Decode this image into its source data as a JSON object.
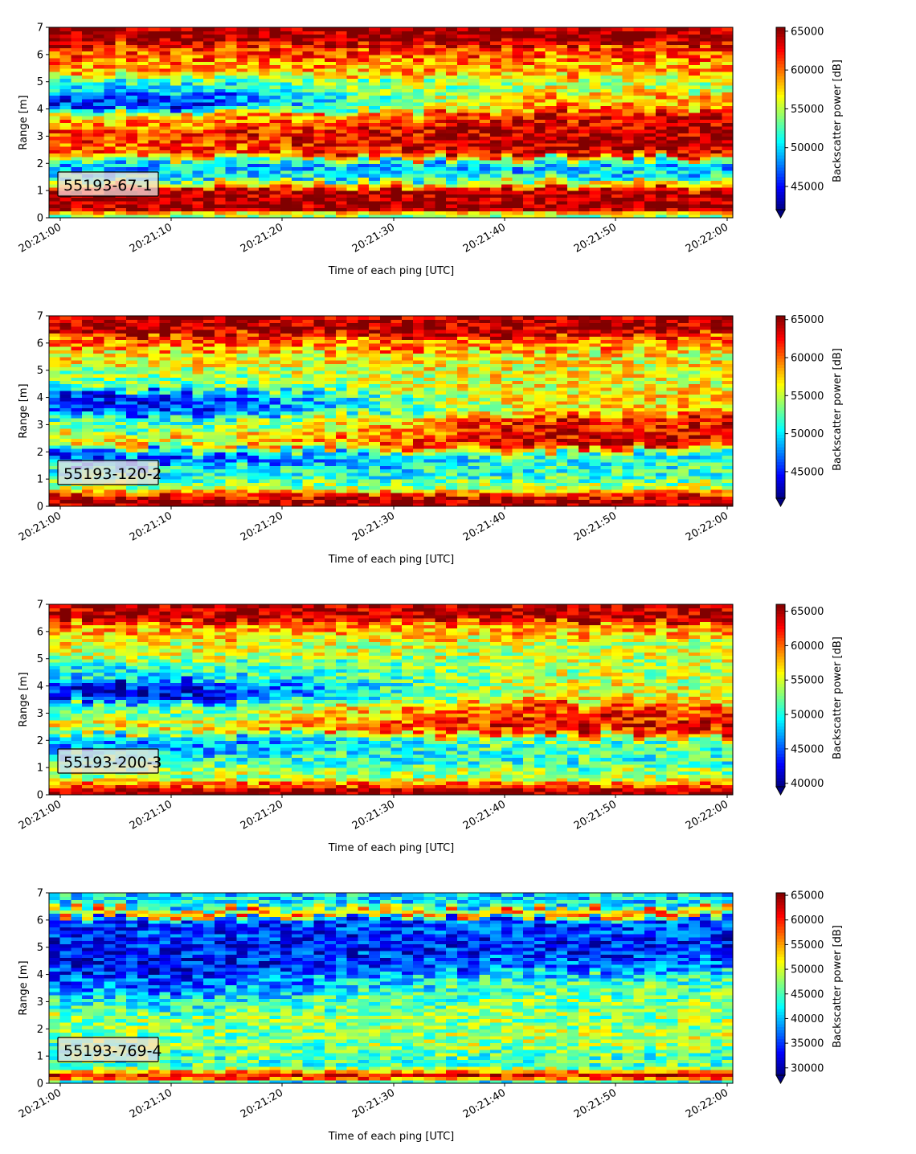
{
  "chart_data": [
    {
      "type": "heatmap",
      "label": "55193-67-1",
      "xlabel": "Time of each ping [UTC]",
      "ylabel": "Range [m]",
      "xticks": [
        "20:21:00",
        "20:21:10",
        "20:21:20",
        "20:21:30",
        "20:21:40",
        "20:21:50",
        "20:22:00"
      ],
      "yticks": [
        "0",
        "1",
        "2",
        "3",
        "4",
        "5",
        "6",
        "7"
      ],
      "ylim": [
        0,
        7
      ],
      "colorbar": {
        "label": "Backscatter power [dB]",
        "ticks": [
          "45000",
          "50000",
          "55000",
          "60000",
          "65000"
        ],
        "range": [
          42000,
          65500
        ]
      },
      "seed": 11,
      "bands": [
        {
          "y": 0.12,
          "v": 0.3,
          "w": 0.1
        },
        {
          "y": 0.35,
          "v": 0.97,
          "w": 0.3
        },
        {
          "y": 0.8,
          "v": 0.97,
          "w": 0.25
        },
        {
          "y": 1.25,
          "v": 0.65,
          "w": 0.12
        },
        {
          "y": 1.55,
          "v": 0.38,
          "w": 0.2
        },
        {
          "y": 1.95,
          "v": 0.28,
          "w": 0.25
        },
        {
          "y": 2.5,
          "v": 0.78,
          "w": 0.35,
          "late": 0.95
        },
        {
          "y": 3.0,
          "v": 0.85,
          "w": 0.3,
          "late": 0.95
        },
        {
          "y": 3.6,
          "v": 0.72,
          "w": 0.3,
          "late": 0.9
        },
        {
          "y": 4.3,
          "v": 0.15,
          "w": 0.35,
          "late": 0.7
        },
        {
          "y": 4.9,
          "v": 0.4,
          "w": 0.3,
          "late": 0.55
        },
        {
          "y": 5.5,
          "v": 0.72,
          "w": 0.3
        },
        {
          "y": 6.1,
          "v": 0.8,
          "w": 0.25
        },
        {
          "y": 6.7,
          "v": 0.98,
          "w": 0.3
        }
      ]
    },
    {
      "type": "heatmap",
      "label": "55193-120-2",
      "xlabel": "Time of each ping [UTC]",
      "ylabel": "Range [m]",
      "xticks": [
        "20:21:00",
        "20:21:10",
        "20:21:20",
        "20:21:30",
        "20:21:40",
        "20:21:50",
        "20:22:00"
      ],
      "yticks": [
        "0",
        "1",
        "2",
        "3",
        "4",
        "5",
        "6",
        "7"
      ],
      "ylim": [
        0,
        7
      ],
      "colorbar": {
        "label": "Backscatter power [dB]",
        "ticks": [
          "45000",
          "50000",
          "55000",
          "60000",
          "65000"
        ],
        "range": [
          41500,
          65500
        ]
      },
      "seed": 23,
      "bands": [
        {
          "y": 0.15,
          "v": 0.97,
          "w": 0.15
        },
        {
          "y": 0.45,
          "v": 0.85,
          "w": 0.12
        },
        {
          "y": 0.75,
          "v": 0.55,
          "w": 0.2
        },
        {
          "y": 1.2,
          "v": 0.42,
          "w": 0.3
        },
        {
          "y": 1.8,
          "v": 0.2,
          "w": 0.3,
          "late": 0.4
        },
        {
          "y": 2.4,
          "v": 0.65,
          "w": 0.3,
          "late": 0.9
        },
        {
          "y": 3.0,
          "v": 0.45,
          "w": 0.3,
          "late": 0.88
        },
        {
          "y": 3.8,
          "v": 0.15,
          "w": 0.35,
          "late": 0.65
        },
        {
          "y": 4.6,
          "v": 0.5,
          "w": 0.3,
          "late": 0.62
        },
        {
          "y": 5.4,
          "v": 0.62,
          "w": 0.3
        },
        {
          "y": 6.0,
          "v": 0.75,
          "w": 0.25
        },
        {
          "y": 6.6,
          "v": 0.96,
          "w": 0.3
        }
      ]
    },
    {
      "type": "heatmap",
      "label": "55193-200-3",
      "xlabel": "Time of each ping [UTC]",
      "ylabel": "Range [m]",
      "xticks": [
        "20:21:00",
        "20:21:10",
        "20:21:20",
        "20:21:30",
        "20:21:40",
        "20:21:50",
        "20:22:00"
      ],
      "yticks": [
        "0",
        "1",
        "2",
        "3",
        "4",
        "5",
        "6",
        "7"
      ],
      "ylim": [
        0,
        7
      ],
      "colorbar": {
        "label": "Backscatter power [dB]",
        "ticks": [
          "40000",
          "45000",
          "50000",
          "55000",
          "60000",
          "65000"
        ],
        "range": [
          39500,
          66000
        ]
      },
      "seed": 37,
      "bands": [
        {
          "y": 0.12,
          "v": 0.97,
          "w": 0.12
        },
        {
          "y": 0.4,
          "v": 0.8,
          "w": 0.12
        },
        {
          "y": 0.75,
          "v": 0.55,
          "w": 0.25
        },
        {
          "y": 1.3,
          "v": 0.42,
          "w": 0.3
        },
        {
          "y": 1.9,
          "v": 0.25,
          "w": 0.3,
          "late": 0.45
        },
        {
          "y": 2.5,
          "v": 0.62,
          "w": 0.3,
          "late": 0.88
        },
        {
          "y": 3.1,
          "v": 0.5,
          "w": 0.3,
          "late": 0.82
        },
        {
          "y": 3.8,
          "v": 0.12,
          "w": 0.35,
          "late": 0.6
        },
        {
          "y": 4.6,
          "v": 0.4,
          "w": 0.3,
          "late": 0.55
        },
        {
          "y": 5.4,
          "v": 0.58,
          "w": 0.3
        },
        {
          "y": 6.1,
          "v": 0.7,
          "w": 0.25
        },
        {
          "y": 6.7,
          "v": 0.95,
          "w": 0.3
        }
      ]
    },
    {
      "type": "heatmap",
      "label": "55193-769-4",
      "xlabel": "Time of each ping [UTC]",
      "ylabel": "Range [m]",
      "xticks": [
        "20:21:00",
        "20:21:10",
        "20:21:20",
        "20:21:30",
        "20:21:40",
        "20:21:50",
        "20:22:00"
      ],
      "yticks": [
        "0",
        "1",
        "2",
        "3",
        "4",
        "5",
        "6",
        "7"
      ],
      "ylim": [
        0,
        7
      ],
      "colorbar": {
        "label": "Backscatter power [dB]",
        "ticks": [
          "30000",
          "35000",
          "40000",
          "45000",
          "50000",
          "55000",
          "60000",
          "65000"
        ],
        "range": [
          28500,
          65500
        ]
      },
      "seed": 53,
      "bands": [
        {
          "y": 0.08,
          "v": 0.4,
          "w": 0.08
        },
        {
          "y": 0.28,
          "v": 0.92,
          "w": 0.1
        },
        {
          "y": 0.45,
          "v": 0.75,
          "w": 0.08
        },
        {
          "y": 0.9,
          "v": 0.45,
          "w": 0.35
        },
        {
          "y": 1.6,
          "v": 0.48,
          "w": 0.35,
          "late": 0.55
        },
        {
          "y": 2.3,
          "v": 0.52,
          "w": 0.35
        },
        {
          "y": 3.0,
          "v": 0.38,
          "w": 0.35,
          "late": 0.5
        },
        {
          "y": 3.7,
          "v": 0.22,
          "w": 0.35,
          "late": 0.45
        },
        {
          "y": 4.4,
          "v": 0.12,
          "w": 0.35,
          "late": 0.22
        },
        {
          "y": 5.1,
          "v": 0.15,
          "w": 0.35
        },
        {
          "y": 5.8,
          "v": 0.18,
          "w": 0.3
        },
        {
          "y": 6.3,
          "v": 0.8,
          "w": 0.15
        },
        {
          "y": 6.7,
          "v": 0.35,
          "w": 0.25
        }
      ]
    }
  ]
}
